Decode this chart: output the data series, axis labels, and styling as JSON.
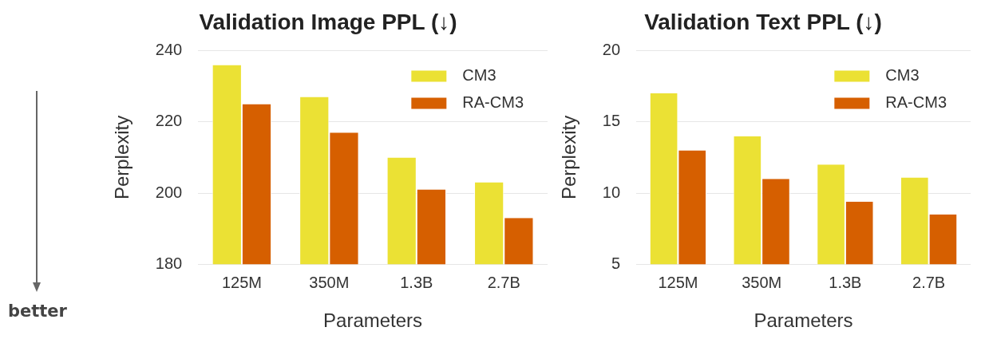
{
  "chart_data": [
    {
      "type": "bar",
      "title": "Validation Image PPL (↓)",
      "xlabel": "Parameters",
      "ylabel": "Perplexity",
      "categories": [
        "125M",
        "350M",
        "1.3B",
        "2.7B"
      ],
      "series": [
        {
          "name": "CM3",
          "color": "#ebe134",
          "values": [
            236,
            227,
            210,
            203
          ]
        },
        {
          "name": "RA-CM3",
          "color": "#d65f00",
          "values": [
            225,
            217,
            201,
            193
          ]
        }
      ],
      "ylim": [
        180,
        240
      ],
      "yticks": [
        180,
        200,
        220,
        240
      ],
      "grid": "y",
      "legend": "top right",
      "annotations": [
        "better"
      ]
    },
    {
      "type": "bar",
      "title": "Validation Text PPL (↓)",
      "xlabel": "Parameters",
      "ylabel": "Perplexity",
      "categories": [
        "125M",
        "350M",
        "1.3B",
        "2.7B"
      ],
      "series": [
        {
          "name": "CM3",
          "color": "#ebe134",
          "values": [
            17,
            14,
            12,
            11.1
          ]
        },
        {
          "name": "RA-CM3",
          "color": "#d65f00",
          "values": [
            13,
            11,
            9.4,
            8.5
          ]
        }
      ],
      "ylim": [
        5,
        20
      ],
      "yticks": [
        5,
        10,
        15,
        20
      ],
      "grid": "y",
      "legend": "top right"
    }
  ]
}
